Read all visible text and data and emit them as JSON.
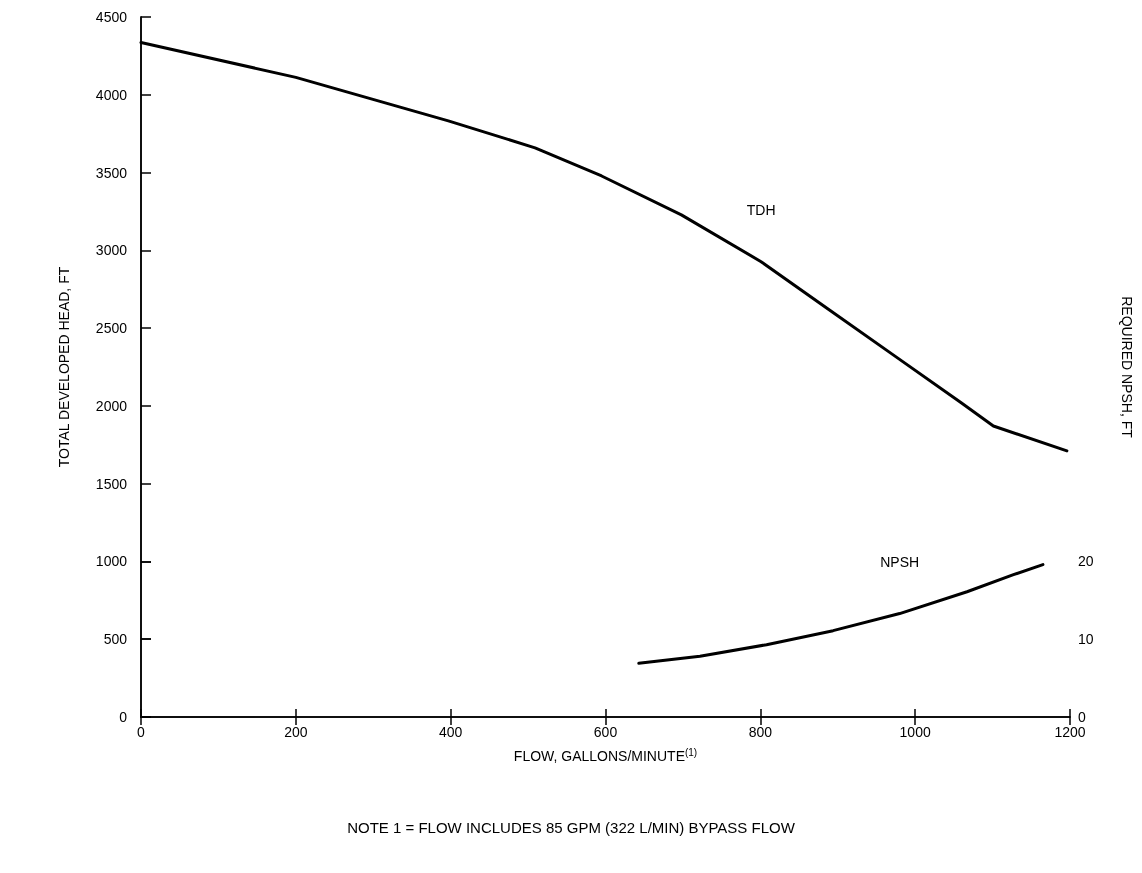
{
  "chart_data": {
    "type": "line",
    "xlabel": "FLOW, GALLONS/MINUTE$^{(1)}$",
    "ylabel": "TOTAL DEVELOPED HEAD, FT",
    "y2label": "REQUIRED NPSH, FT",
    "series": [
      {
        "name": "TDH",
        "color": "#000000",
        "x": [
          0,
          200,
          397,
          509,
          595,
          698,
          801,
          887,
          973,
          1059,
          1101,
          1196
        ],
        "values": [
          4336,
          4112,
          3832,
          3659,
          3478,
          3228,
          2927,
          2625,
          2323,
          2022,
          1871,
          1711
        ]
      },
      {
        "name": "NPSH",
        "color": "#000000",
        "axis": "y2",
        "x": [
          643,
          722,
          808,
          894,
          980,
          1067,
          1127,
          1165
        ],
        "values": [
          6.9,
          7.8,
          9.3,
          11.1,
          13.3,
          16.1,
          18.3,
          19.6
        ]
      }
    ],
    "xlim": [
      0,
      1200
    ],
    "xticks": [
      0,
      200,
      400,
      600,
      800,
      1000,
      1200
    ],
    "ylim": [
      0,
      4500
    ],
    "yticks": [
      0,
      500,
      1000,
      1500,
      2000,
      2500,
      3000,
      3500,
      4000,
      4500
    ],
    "y2lim": [
      0,
      90
    ],
    "y2ticks": [
      0,
      10,
      20
    ],
    "grid": false,
    "marker": "none",
    "line_style": "solid",
    "annotations": [
      "NOTE 1 = FLOW INCLUDES 85 GPM (322 L/MIN) BYPASS FLOW"
    ]
  }
}
